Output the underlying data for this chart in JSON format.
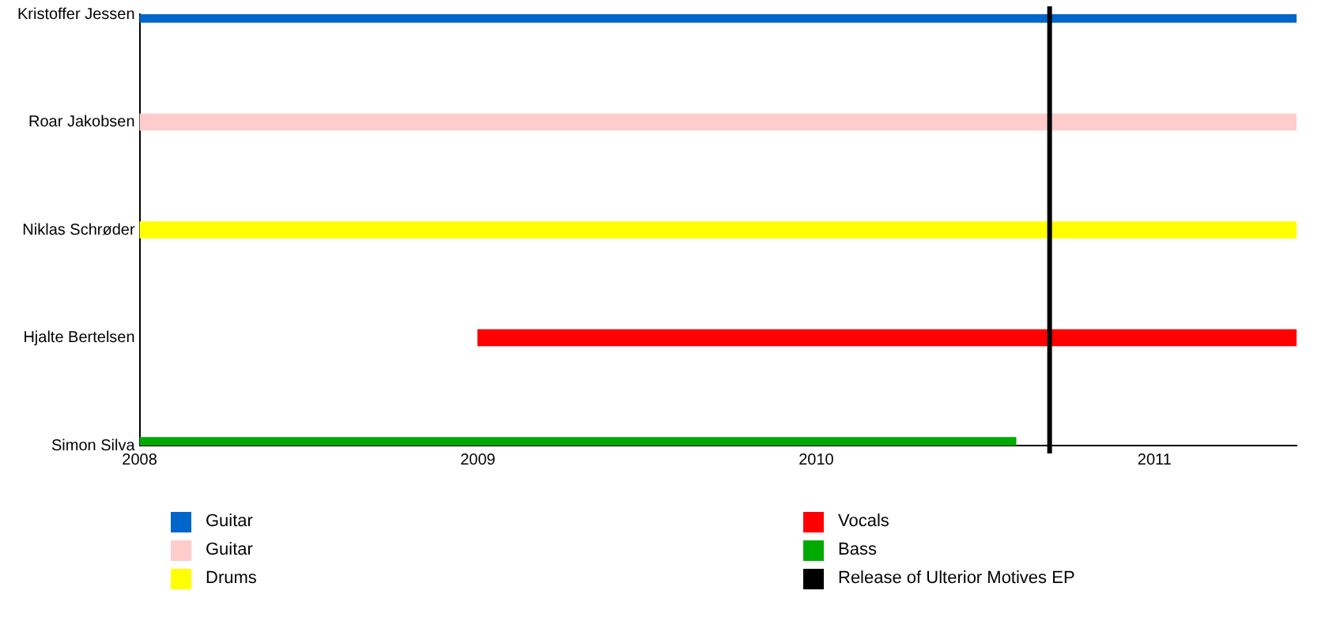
{
  "chart_data": {
    "type": "bar",
    "orientation": "horizontal",
    "categories": [
      "Kristoffer Jessen",
      "Roar Jakobsen",
      "Niklas Schrøder",
      "Hjalte Bertelsen",
      "Simon Silva"
    ],
    "series": [
      {
        "name": "Guitar",
        "color": "#0066cc",
        "values": [
          3.42,
          null,
          null,
          null,
          null
        ],
        "base": [
          2008,
          null,
          null,
          null,
          null
        ]
      },
      {
        "name": "Guitar",
        "color": "#ffcccc",
        "values": [
          null,
          3.42,
          null,
          null,
          null
        ],
        "base": [
          null,
          2008,
          null,
          null,
          null
        ]
      },
      {
        "name": "Drums",
        "color": "#ffff00",
        "values": [
          null,
          null,
          3.42,
          null,
          null
        ],
        "base": [
          null,
          null,
          2008,
          null,
          null
        ]
      },
      {
        "name": "Vocals",
        "color": "#ff0000",
        "values": [
          null,
          null,
          null,
          2.42,
          null
        ],
        "base": [
          null,
          null,
          null,
          2009,
          null
        ]
      },
      {
        "name": "Bass",
        "color": "#00aa00",
        "values": [
          null,
          null,
          null,
          null,
          2.59
        ],
        "base": [
          null,
          null,
          null,
          null,
          2008
        ]
      }
    ],
    "xlim": [
      2008,
      2011.42
    ],
    "xticks": [
      2008,
      2009,
      2010,
      2011
    ],
    "grid": false,
    "legend": "bottom",
    "ref_lines": [
      {
        "axis": "x",
        "value": 2010.69,
        "label": "Release of Ulterior Motives EP",
        "color": "#000000"
      }
    ]
  }
}
